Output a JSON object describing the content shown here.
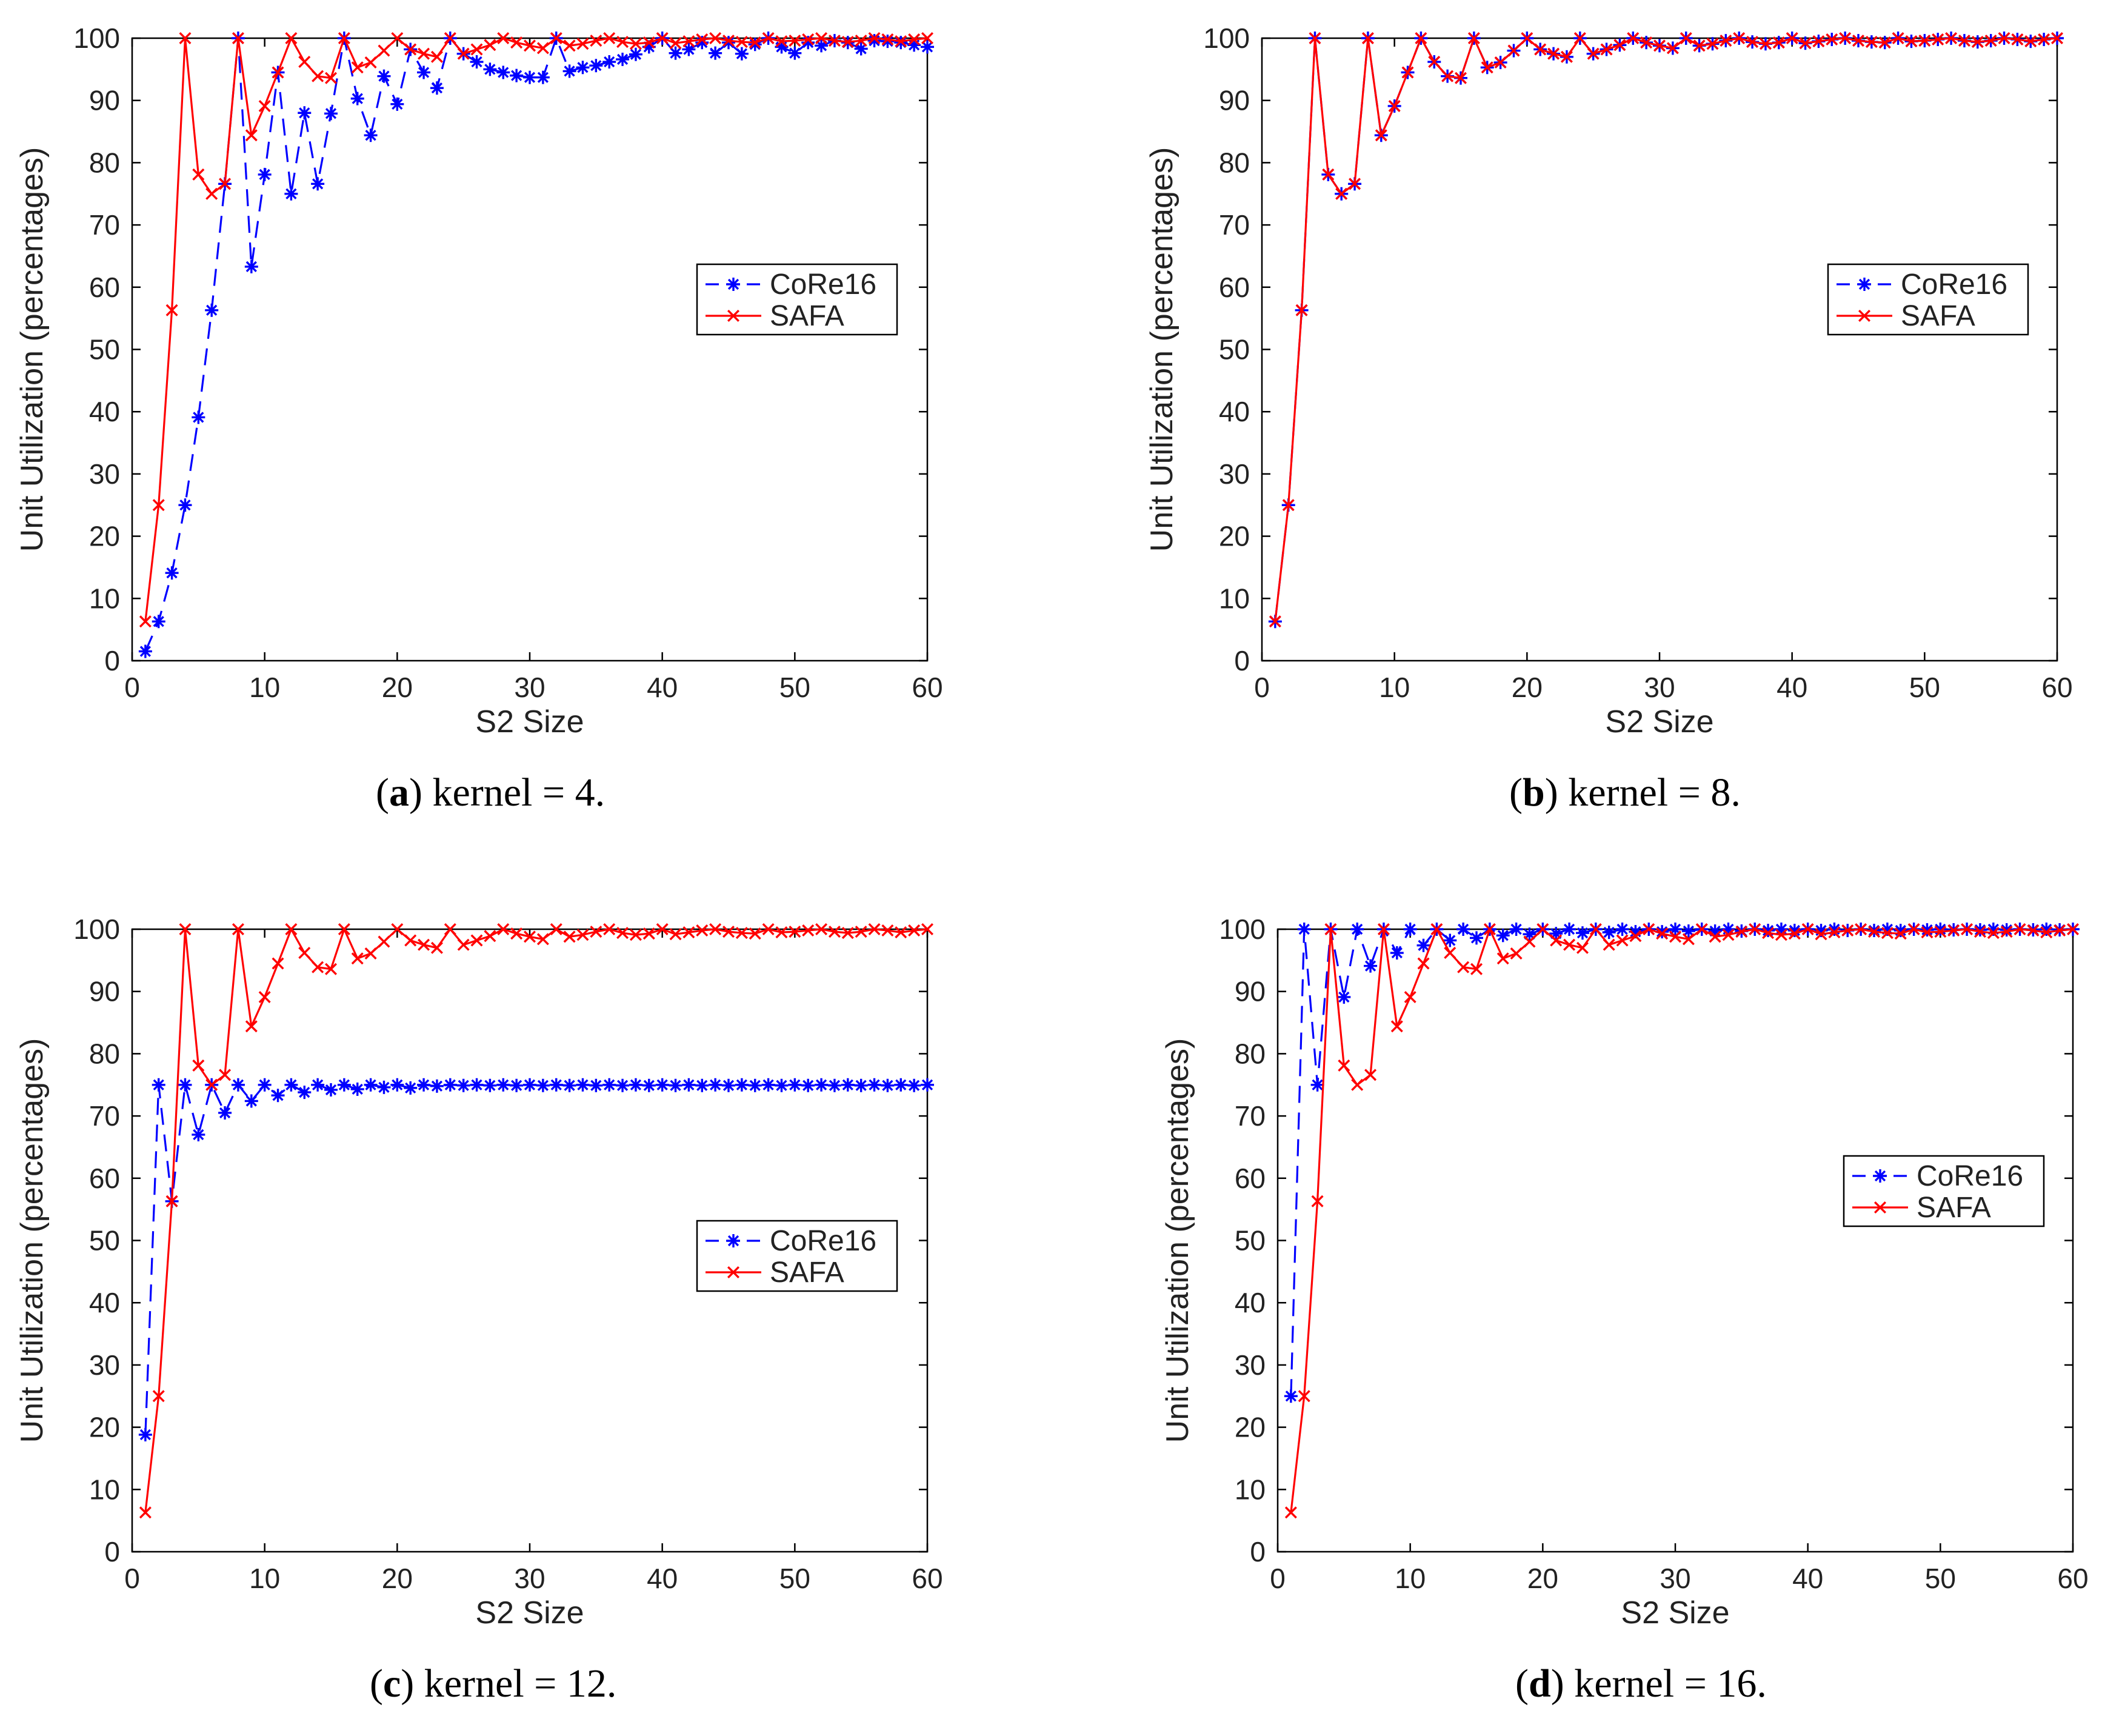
{
  "colors": {
    "core16": "#0000ff",
    "safa": "#ff0000",
    "axis": "#000000"
  },
  "chart_data": [
    {
      "type": "line",
      "panel": "a",
      "caption": {
        "letter": "a",
        "text": "kernel = 4."
      },
      "xlabel": "S2 Size",
      "ylabel": "Unit Utilization (percentages)",
      "xlim": [
        0,
        60
      ],
      "ylim": [
        0,
        100
      ],
      "xticks": [
        0,
        10,
        20,
        30,
        40,
        50,
        60
      ],
      "yticks": [
        0,
        10,
        20,
        30,
        40,
        50,
        60,
        70,
        80,
        90,
        100
      ],
      "legend_position": "center-right",
      "series": [
        {
          "name": "CoRe16",
          "style": "dashed",
          "marker": "*",
          "values": [
            1.5,
            6.3,
            14.1,
            25,
            39.1,
            56.3,
            76.6,
            100,
            63.3,
            78.1,
            94.5,
            75,
            88,
            76.6,
            87.9,
            100,
            90.3,
            84.4,
            93.9,
            89.4,
            98.2,
            94.5,
            92,
            100,
            97.5,
            96.2,
            95,
            94.5,
            94,
            93.7,
            93.7,
            100,
            94.7,
            95.3,
            95.6,
            96.2,
            96.6,
            97.4,
            98.6,
            100,
            97.6,
            98.2,
            99.3,
            97.6,
            99.3,
            97.5,
            99,
            100,
            98.6,
            97.6,
            99.3,
            98.8,
            99.6,
            99.3,
            98.3,
            99.6,
            99.5,
            99.3,
            98.9,
            98.6
          ]
        },
        {
          "name": "SAFA",
          "style": "solid",
          "marker": "x",
          "values": [
            6.3,
            25,
            56.3,
            100,
            78.1,
            75,
            76.6,
            100,
            84.4,
            89.1,
            94.5,
            100,
            96.2,
            93.9,
            93.6,
            100,
            95.3,
            96.1,
            98,
            100,
            98.2,
            97.5,
            97,
            100,
            97.5,
            98.2,
            98.9,
            100,
            99.3,
            98.8,
            98.4,
            100,
            98.8,
            99.1,
            99.6,
            100,
            99.4,
            99.1,
            99.3,
            100,
            99.2,
            99.5,
            99.8,
            100,
            99.6,
            99.4,
            99.3,
            100,
            99.5,
            99.6,
            99.8,
            100,
            99.6,
            99.4,
            99.6,
            100,
            99.8,
            99.5,
            99.8,
            100
          ]
        }
      ]
    },
    {
      "type": "line",
      "panel": "b",
      "caption": {
        "letter": "b",
        "text": "kernel = 8."
      },
      "xlabel": "S2 Size",
      "ylabel": "Unit Utilization (percentages)",
      "xlim": [
        0,
        60
      ],
      "ylim": [
        0,
        100
      ],
      "xticks": [
        0,
        10,
        20,
        30,
        40,
        50,
        60
      ],
      "yticks": [
        0,
        10,
        20,
        30,
        40,
        50,
        60,
        70,
        80,
        90,
        100
      ],
      "legend_position": "center-right",
      "series": [
        {
          "name": "CoRe16",
          "style": "dashed",
          "marker": "*",
          "values": [
            6.3,
            25,
            56.3,
            100,
            78.1,
            75,
            76.6,
            100,
            84.4,
            89.1,
            94.5,
            100,
            96.2,
            93.9,
            93.6,
            100,
            95.3,
            96.1,
            98,
            100,
            98.2,
            97.5,
            97,
            100,
            97.5,
            98.2,
            98.9,
            100,
            99.3,
            98.8,
            98.4,
            100,
            98.8,
            99.1,
            99.6,
            100,
            99.4,
            99.1,
            99.3,
            100,
            99.2,
            99.5,
            99.8,
            100,
            99.6,
            99.4,
            99.3,
            100,
            99.5,
            99.6,
            99.8,
            100,
            99.6,
            99.4,
            99.6,
            100,
            99.8,
            99.5,
            99.8,
            100
          ]
        },
        {
          "name": "SAFA",
          "style": "solid",
          "marker": "x",
          "values": [
            6.3,
            25,
            56.3,
            100,
            78.1,
            75,
            76.6,
            100,
            84.4,
            89.1,
            94.5,
            100,
            96.2,
            93.9,
            93.6,
            100,
            95.3,
            96.1,
            98,
            100,
            98.2,
            97.5,
            97,
            100,
            97.5,
            98.2,
            98.9,
            100,
            99.3,
            98.8,
            98.4,
            100,
            98.8,
            99.1,
            99.6,
            100,
            99.4,
            99.1,
            99.3,
            100,
            99.2,
            99.5,
            99.8,
            100,
            99.6,
            99.4,
            99.3,
            100,
            99.5,
            99.6,
            99.8,
            100,
            99.6,
            99.4,
            99.6,
            100,
            99.8,
            99.5,
            99.8,
            100
          ]
        }
      ]
    },
    {
      "type": "line",
      "panel": "c",
      "caption": {
        "letter": "c",
        "text": "kernel = 12."
      },
      "xlabel": "S2 Size",
      "ylabel": "Unit Utilization (percentages)",
      "xlim": [
        0,
        60
      ],
      "ylim": [
        0,
        100
      ],
      "xticks": [
        0,
        10,
        20,
        30,
        40,
        50,
        60
      ],
      "yticks": [
        0,
        10,
        20,
        30,
        40,
        50,
        60,
        70,
        80,
        90,
        100
      ],
      "legend_position": "center-right",
      "series": [
        {
          "name": "CoRe16",
          "style": "dashed",
          "marker": "*",
          "values": [
            18.8,
            75,
            56.3,
            75,
            67,
            75,
            70.5,
            75,
            72.4,
            75,
            73.3,
            75,
            73.8,
            75,
            74.2,
            75,
            74.3,
            75,
            74.6,
            75,
            74.5,
            75,
            74.8,
            75,
            74.9,
            75,
            74.9,
            75,
            74.9,
            75,
            74.9,
            75,
            74.9,
            75,
            74.9,
            75,
            74.9,
            75,
            74.9,
            75,
            74.9,
            75,
            74.9,
            75,
            74.9,
            75,
            74.9,
            75,
            74.9,
            75,
            74.9,
            75,
            74.9,
            75,
            74.9,
            75,
            74.9,
            75,
            74.9,
            75
          ]
        },
        {
          "name": "SAFA",
          "style": "solid",
          "marker": "x",
          "values": [
            6.3,
            25,
            56.3,
            100,
            78.1,
            75,
            76.6,
            100,
            84.4,
            89.1,
            94.5,
            100,
            96.2,
            93.9,
            93.6,
            100,
            95.3,
            96.1,
            98,
            100,
            98.2,
            97.5,
            97,
            100,
            97.5,
            98.2,
            98.9,
            100,
            99.3,
            98.8,
            98.4,
            100,
            98.8,
            99.1,
            99.6,
            100,
            99.4,
            99.1,
            99.3,
            100,
            99.2,
            99.5,
            99.8,
            100,
            99.6,
            99.4,
            99.3,
            100,
            99.5,
            99.6,
            99.8,
            100,
            99.6,
            99.4,
            99.6,
            100,
            99.8,
            99.5,
            99.8,
            100
          ]
        }
      ]
    },
    {
      "type": "line",
      "panel": "d",
      "caption": {
        "letter": "d",
        "text": "kernel = 16."
      },
      "xlabel": "S2 Size",
      "ylabel": "Unit Utilization (percentages)",
      "xlim": [
        0,
        60
      ],
      "ylim": [
        0,
        100
      ],
      "xticks": [
        0,
        10,
        20,
        30,
        40,
        50,
        60
      ],
      "yticks": [
        0,
        10,
        20,
        30,
        40,
        50,
        60,
        70,
        80,
        90,
        100
      ],
      "legend_position": "center-right",
      "series": [
        {
          "name": "CoRe16",
          "style": "dashed",
          "marker": "*",
          "values": [
            25,
            100,
            75,
            100,
            89.1,
            100,
            94.1,
            100,
            96.2,
            100,
            97.4,
            100,
            98.2,
            100,
            98.6,
            100,
            99,
            100,
            99.2,
            100,
            99.3,
            100,
            99.4,
            100,
            99.5,
            100,
            99.6,
            100,
            99.6,
            100,
            99.7,
            100,
            99.7,
            100,
            99.7,
            100,
            99.8,
            100,
            99.8,
            100,
            99.8,
            100,
            99.8,
            100,
            99.8,
            100,
            99.8,
            100,
            99.9,
            100,
            99.9,
            100,
            99.9,
            100,
            99.9,
            100,
            99.9,
            100,
            99.9,
            100
          ]
        },
        {
          "name": "SAFA",
          "style": "solid",
          "marker": "x",
          "values": [
            6.3,
            25,
            56.3,
            100,
            78.1,
            75,
            76.6,
            100,
            84.4,
            89.1,
            94.5,
            100,
            96.2,
            93.9,
            93.6,
            100,
            95.3,
            96.1,
            98,
            100,
            98.2,
            97.5,
            97,
            100,
            97.5,
            98.2,
            98.9,
            100,
            99.3,
            98.8,
            98.4,
            100,
            98.8,
            99.1,
            99.6,
            100,
            99.4,
            99.1,
            99.3,
            100,
            99.2,
            99.5,
            99.8,
            100,
            99.6,
            99.4,
            99.3,
            100,
            99.5,
            99.6,
            99.8,
            100,
            99.6,
            99.4,
            99.6,
            100,
            99.8,
            99.5,
            99.8,
            100
          ]
        }
      ]
    }
  ]
}
